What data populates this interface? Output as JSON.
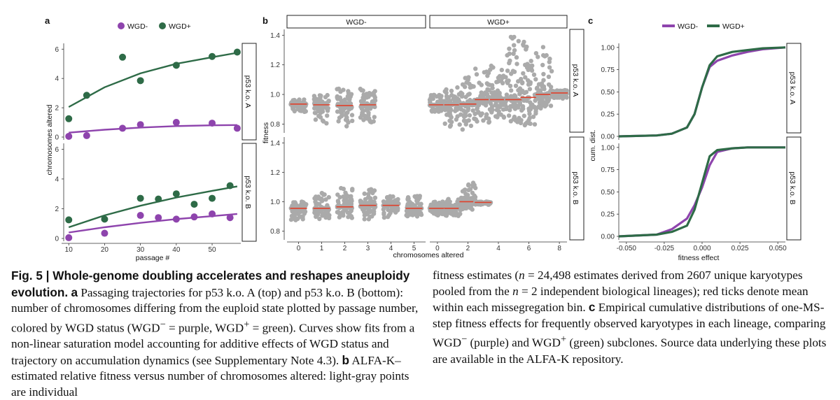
{
  "panels": {
    "a": {
      "label": "a",
      "legend": [
        "WGD-",
        "WGD+"
      ],
      "strips": [
        "p53 k.o. A",
        "p53 k.o. B"
      ],
      "xlabel": "passage #",
      "ylabel": "chromosomes altered",
      "xticks": [
        "10",
        "20",
        "30",
        "40",
        "50"
      ],
      "yticks": [
        "0",
        "2",
        "4",
        "6"
      ]
    },
    "b": {
      "label": "b",
      "top_strips": [
        "WGD-",
        "WGD+"
      ],
      "side_strips": [
        "p53 k.o. A",
        "p53 k.o. B"
      ],
      "xlabel": "chromosomes altered",
      "ylabel": "fitness",
      "xticks_left": [
        "0",
        "1",
        "2",
        "3",
        "4",
        "5"
      ],
      "xticks_right": [
        "0",
        "2",
        "4",
        "6",
        "8"
      ],
      "yticks": [
        "0.8",
        "1.0",
        "1.2",
        "1.4"
      ]
    },
    "c": {
      "label": "c",
      "legend": [
        "WGD-",
        "WGD+"
      ],
      "strips": [
        "p53 k.o. A",
        "p53 k.o. B"
      ],
      "xlabel": "fitness effect",
      "ylabel": "cum. dist.",
      "xticks": [
        "-0.050",
        "-0.025",
        "0.000",
        "0.025",
        "0.050"
      ],
      "yticks": [
        "0.00",
        "0.25",
        "0.50",
        "0.75",
        "1.00"
      ]
    }
  },
  "colors": {
    "wgd_minus": "#8e44ad",
    "wgd_plus": "#2e6b47",
    "points": "#aaaaaa",
    "median": "#e0402a"
  },
  "chart_data": [
    {
      "type": "scatter",
      "title": "a",
      "xlabel": "passage #",
      "ylabel": "chromosomes altered",
      "xlim": [
        8,
        58
      ],
      "ylim": [
        0,
        6.3
      ],
      "facets": [
        {
          "name": "p53 k.o. A",
          "series": [
            {
              "name": "WGD+",
              "x": [
                10,
                15,
                25,
                30,
                40,
                50,
                57
              ],
              "y": [
                1.25,
                2.85,
                5.45,
                3.85,
                4.9,
                5.5,
                5.8
              ],
              "fit": {
                "x": [
                  10,
                  20,
                  30,
                  40,
                  50,
                  57
                ],
                "y": [
                  2.05,
                  3.4,
                  4.35,
                  5.0,
                  5.45,
                  5.75
                ]
              }
            },
            {
              "name": "WGD-",
              "x": [
                10,
                15,
                25,
                30,
                40,
                50,
                57
              ],
              "y": [
                0.05,
                0.1,
                0.6,
                0.85,
                1.0,
                0.95,
                0.6
              ],
              "fit": {
                "x": [
                  10,
                  20,
                  30,
                  40,
                  50,
                  57
                ],
                "y": [
                  0.3,
                  0.5,
                  0.65,
                  0.75,
                  0.8,
                  0.82
                ]
              }
            }
          ]
        },
        {
          "name": "p53 k.o. B",
          "series": [
            {
              "name": "WGD+",
              "x": [
                10,
                20,
                30,
                35,
                40,
                45,
                50,
                55
              ],
              "y": [
                1.25,
                1.3,
                2.7,
                2.65,
                3.0,
                2.3,
                2.7,
                3.55
              ],
              "fit": {
                "x": [
                  10,
                  20,
                  30,
                  40,
                  50,
                  57
                ],
                "y": [
                  0.75,
                  1.55,
                  2.2,
                  2.75,
                  3.2,
                  3.5
                ]
              }
            },
            {
              "name": "WGD-",
              "x": [
                10,
                20,
                30,
                35,
                40,
                45,
                50,
                55
              ],
              "y": [
                0.05,
                0.35,
                1.55,
                1.4,
                1.3,
                1.45,
                1.65,
                1.4
              ],
              "fit": {
                "x": [
                  10,
                  20,
                  30,
                  40,
                  50,
                  57
                ],
                "y": [
                  0.4,
                  0.75,
                  1.05,
                  1.3,
                  1.5,
                  1.65
                ]
              }
            }
          ]
        }
      ]
    },
    {
      "type": "scatter",
      "title": "b",
      "xlabel": "chromosomes altered",
      "ylabel": "fitness",
      "ylim": [
        0.75,
        1.43
      ],
      "facets": [
        {
          "name": "WGD- / p53 k.o. A",
          "x": [
            0,
            1,
            2,
            3
          ],
          "median": [
            0.935,
            0.93,
            0.925,
            0.93
          ],
          "low": [
            0.88,
            0.8,
            0.78,
            0.8
          ],
          "high": [
            0.97,
            1.0,
            1.04,
            1.04
          ]
        },
        {
          "name": "WGD+ / p53 k.o. A",
          "x": [
            0,
            1,
            2,
            3,
            4,
            5,
            6,
            7,
            8
          ],
          "median": [
            0.93,
            0.93,
            0.935,
            0.965,
            0.965,
            0.965,
            0.98,
            1.0,
            1.01
          ],
          "low": [
            0.88,
            0.78,
            0.76,
            0.8,
            0.84,
            0.8,
            0.78,
            0.9,
            0.97
          ],
          "high": [
            1.0,
            1.05,
            1.12,
            1.2,
            1.2,
            1.39,
            1.37,
            1.32,
            1.03
          ]
        },
        {
          "name": "WGD- / p53 k.o. B",
          "x": [
            0,
            1,
            2,
            3,
            4,
            5
          ],
          "median": [
            0.955,
            0.955,
            0.965,
            0.975,
            0.975,
            0.955
          ],
          "low": [
            0.87,
            0.88,
            0.88,
            0.88,
            0.89,
            0.9
          ],
          "high": [
            1.0,
            1.06,
            1.1,
            1.09,
            1.04,
            1.04
          ]
        },
        {
          "name": "WGD+ / p53 k.o. B",
          "x": [
            0,
            1,
            2,
            3
          ],
          "median": [
            0.955,
            0.955,
            1.0,
            0.995
          ],
          "low": [
            0.9,
            0.9,
            0.94,
            0.98
          ],
          "high": [
            1.0,
            1.02,
            1.13,
            1.0
          ]
        }
      ]
    },
    {
      "type": "line",
      "title": "c",
      "xlabel": "fitness effect",
      "ylabel": "cum. dist.",
      "xlim": [
        -0.055,
        0.055
      ],
      "ylim": [
        0,
        1.03
      ],
      "facets": [
        {
          "name": "p53 k.o. A",
          "series": [
            {
              "name": "WGD-",
              "x": [
                -0.055,
                -0.03,
                -0.02,
                -0.01,
                -0.005,
                0.0,
                0.005,
                0.01,
                0.02,
                0.03,
                0.04,
                0.055
              ],
              "y": [
                0.0,
                0.01,
                0.03,
                0.1,
                0.25,
                0.55,
                0.78,
                0.85,
                0.91,
                0.95,
                0.98,
                1.0
              ]
            },
            {
              "name": "WGD+",
              "x": [
                -0.055,
                -0.03,
                -0.02,
                -0.01,
                -0.005,
                0.0,
                0.005,
                0.01,
                0.02,
                0.03,
                0.04,
                0.055
              ],
              "y": [
                0.0,
                0.01,
                0.03,
                0.1,
                0.25,
                0.55,
                0.8,
                0.9,
                0.95,
                0.97,
                0.99,
                1.0
              ]
            }
          ]
        },
        {
          "name": "p53 k.o. B",
          "series": [
            {
              "name": "WGD-",
              "x": [
                -0.055,
                -0.03,
                -0.02,
                -0.01,
                -0.005,
                0.0,
                0.005,
                0.01,
                0.02,
                0.03,
                0.055
              ],
              "y": [
                0.0,
                0.02,
                0.08,
                0.2,
                0.35,
                0.55,
                0.8,
                0.95,
                0.99,
                1.0,
                1.0
              ]
            },
            {
              "name": "WGD+",
              "x": [
                -0.055,
                -0.03,
                -0.02,
                -0.01,
                -0.005,
                0.0,
                0.005,
                0.01,
                0.02,
                0.03,
                0.055
              ],
              "y": [
                0.0,
                0.02,
                0.05,
                0.12,
                0.3,
                0.6,
                0.9,
                0.97,
                0.99,
                1.0,
                1.0
              ]
            }
          ]
        }
      ]
    }
  ],
  "caption": {
    "fig_label": "Fig. 5 | Whole-genome doubling accelerates and reshapes aneuploidy evolution.",
    "a_label": "a",
    "a_text_1": "Passaging trajectories for p53 k.o. A (top) and p53 k.o. B (bottom): number of chromosomes differing from the euploid state plotted by passage number, colored by WGD status (WGD",
    "a_sup_minus": "−",
    "a_text_2": " = purple, WGD",
    "a_sup_plus": "+",
    "a_text_3": " = green). Curves show fits from a non-linear saturation model accounting for additive effects of WGD status and trajectory on accumulation dynamics (see Supplementary Note 4.3).",
    "b_label": "b",
    "b_text": "ALFA-K–estimated relative fitness versus number of chromosomes altered: light-gray points are individual",
    "right_text_1": "fitness estimates (",
    "n_symbol": "n",
    "right_text_2": " = 24,498 estimates derived from 2607 unique karyotypes pooled from the ",
    "right_text_3": " = 2 independent biological lineages); red ticks denote mean within each missegregation bin.",
    "c_label": "c",
    "c_text_1": "Empirical cumulative distributions of one-MS-step fitness effects for frequently observed karyotypes in each lineage, comparing WGD",
    "c_sup_minus": "−",
    "c_text_2": " (purple) and WGD",
    "c_sup_plus": "+",
    "c_text_3": " (green) subclones. Source data underlying these plots are available in the ALFA-K repository."
  }
}
